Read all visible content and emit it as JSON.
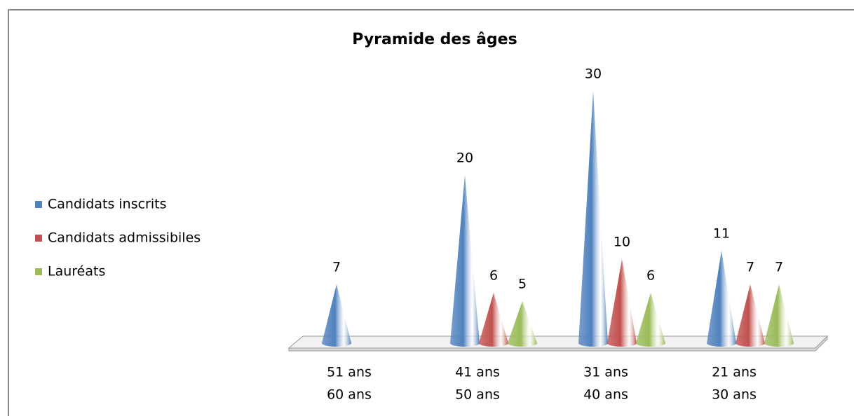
{
  "chart_data": {
    "type": "cone",
    "title": "Pyramide des âges",
    "categories": [
      [
        "51 ans",
        "60 ans"
      ],
      [
        "41 ans",
        "50 ans"
      ],
      [
        "31 ans",
        "40 ans"
      ],
      [
        "21 ans",
        "30 ans"
      ]
    ],
    "series": [
      {
        "name": "Candidats inscrits",
        "color": "#4f81bd",
        "values": [
          7,
          20,
          30,
          11
        ]
      },
      {
        "name": "Candidats admissibiles",
        "color": "#c0504d",
        "values": [
          null,
          6,
          10,
          7
        ]
      },
      {
        "name": "Lauréats",
        "color": "#9bbb59",
        "values": [
          null,
          5,
          6,
          7
        ]
      }
    ],
    "legend": "left"
  }
}
